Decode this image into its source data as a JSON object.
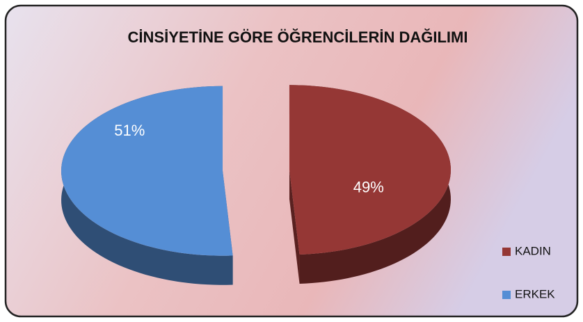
{
  "chart_data": {
    "type": "pie",
    "title": "CİNSİYETİNE GÖRE ÖĞRENCİLERİN DAĞILIMI",
    "categories": [
      "KADIN",
      "ERKEK"
    ],
    "values": [
      49,
      51
    ],
    "value_labels": [
      "49%",
      "51%"
    ],
    "colors": [
      "#953735",
      "#558ed5"
    ],
    "legend": "right"
  }
}
